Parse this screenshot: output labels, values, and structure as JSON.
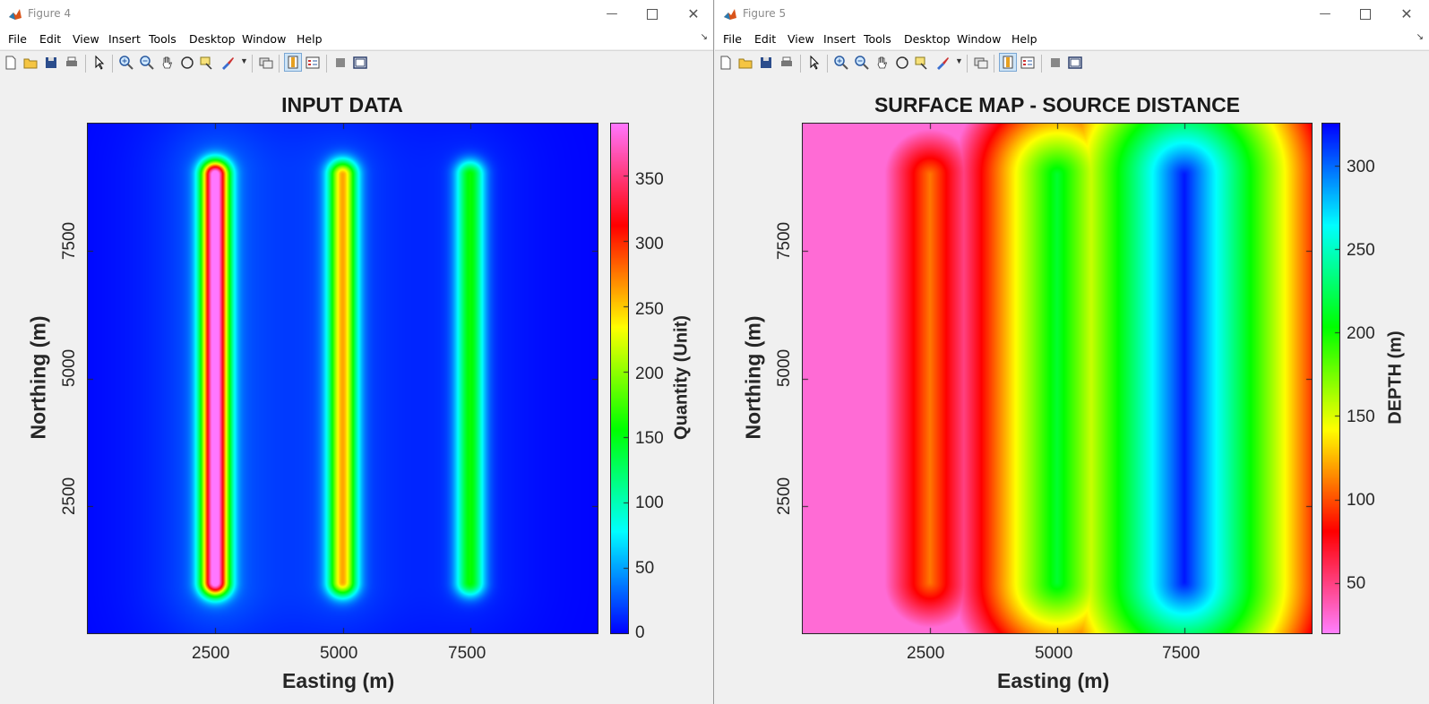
{
  "windows": [
    {
      "title": "Figure 4",
      "menu": [
        "File",
        "Edit",
        "View",
        "Insert",
        "Tools",
        "Desktop",
        "Window",
        "Help"
      ],
      "plot": {
        "title": "INPUT DATA",
        "xlabel": "Easting (m)",
        "ylabel": "Northing (m)",
        "xticks": [
          "2500",
          "5000",
          "7500"
        ],
        "yticks": [
          "7500",
          "5000",
          "2500"
        ],
        "colorbar_label": "Quantity (Unit)",
        "colorbar_ticks": [
          "350",
          "300",
          "250",
          "200",
          "150",
          "100",
          "50",
          "0"
        ]
      }
    },
    {
      "title": "Figure 5",
      "menu": [
        "File",
        "Edit",
        "View",
        "Insert",
        "Tools",
        "Desktop",
        "Window",
        "Help"
      ],
      "plot": {
        "title": "SURFACE MAP - SOURCE DISTANCE",
        "xlabel": "Easting (m)",
        "ylabel": "Northing (m)",
        "xticks": [
          "2500",
          "5000",
          "7500"
        ],
        "yticks": [
          "7500",
          "5000",
          "2500"
        ],
        "colorbar_label": "DEPTH (m)",
        "colorbar_ticks": [
          "300",
          "250",
          "200",
          "150",
          "100",
          "50"
        ]
      }
    }
  ],
  "chart_data": [
    {
      "type": "heatmap",
      "title": "INPUT DATA",
      "xlabel": "Easting (m)",
      "ylabel": "Northing (m)",
      "xlim": [
        0,
        10000
      ],
      "ylim": [
        0,
        10000
      ],
      "xticks": [
        2500,
        5000,
        7500
      ],
      "yticks": [
        2500,
        5000,
        7500
      ],
      "colorbar": {
        "label": "Quantity (Unit)",
        "range": [
          0,
          390
        ],
        "ticks": [
          0,
          50,
          100,
          150,
          200,
          250,
          300,
          350
        ],
        "colormap": [
          "#0000ff",
          "#00ffff",
          "#00ff00",
          "#ffff00",
          "#ff0000",
          "#ff77ff"
        ]
      },
      "sources": [
        {
          "x": 2500,
          "y_from": 1000,
          "y_to": 9000,
          "peak": 370
        },
        {
          "x": 5000,
          "y_from": 1000,
          "y_to": 9000,
          "peak": 230
        },
        {
          "x": 7500,
          "y_from": 1000,
          "y_to": 9000,
          "peak": 140
        }
      ],
      "background": 0
    },
    {
      "type": "heatmap",
      "title": "SURFACE MAP - SOURCE DISTANCE",
      "xlabel": "Easting (m)",
      "ylabel": "Northing (m)",
      "xlim": [
        0,
        10000
      ],
      "ylim": [
        0,
        10000
      ],
      "xticks": [
        2500,
        5000,
        7500
      ],
      "yticks": [
        2500,
        5000,
        7500
      ],
      "colorbar": {
        "label": "DEPTH (m)",
        "range": [
          20,
          325
        ],
        "ticks": [
          50,
          100,
          150,
          200,
          250,
          300
        ],
        "colormap": [
          "#ff80ff",
          "#ff0000",
          "#ffff00",
          "#00ff00",
          "#00ffff",
          "#0000ff"
        ]
      },
      "sources": [
        {
          "x": 2500,
          "y_from": 1000,
          "y_to": 9000,
          "depth": 110
        },
        {
          "x": 5000,
          "y_from": 1000,
          "y_to": 9000,
          "depth": 215
        },
        {
          "x": 7500,
          "y_from": 1000,
          "y_to": 9000,
          "depth": 320
        }
      ],
      "edge_depth": 30
    }
  ]
}
